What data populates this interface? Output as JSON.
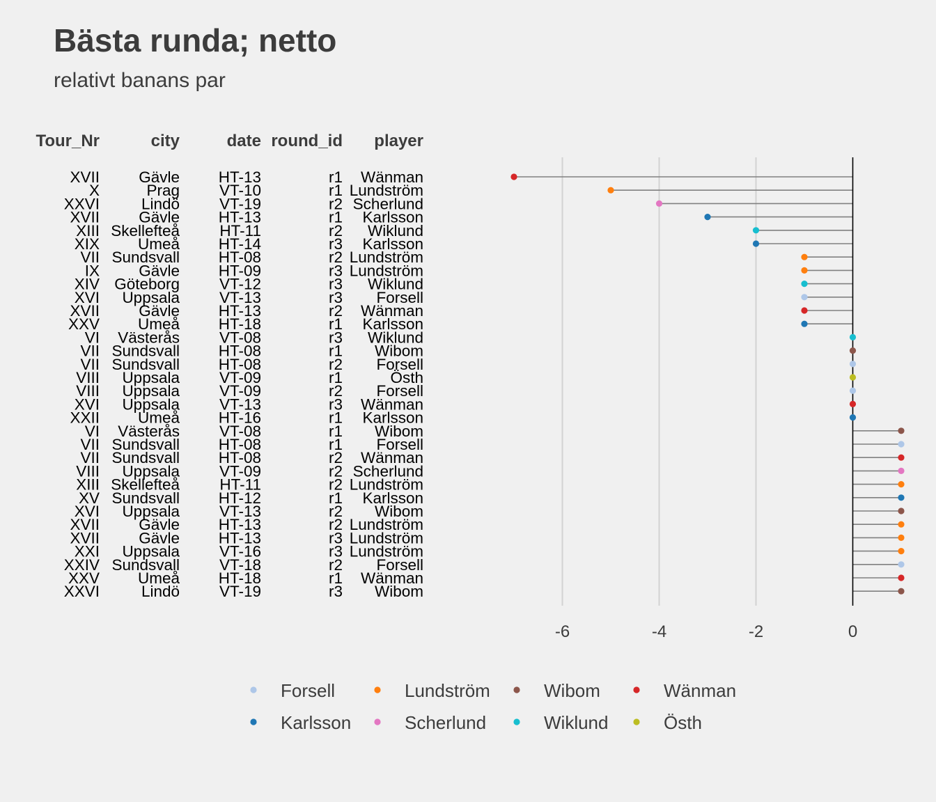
{
  "chart_data": {
    "type": "lollipop",
    "title": "Bästa runda; netto",
    "subtitle": "relativt banans par",
    "columns": [
      "Tour_Nr",
      "city",
      "date",
      "round_id",
      "player"
    ],
    "xlim": [
      -7.05,
      1.05
    ],
    "x_ticks": [
      -6,
      -4,
      -2,
      0
    ],
    "x_tick_labels": [
      "-6",
      "-4",
      "-2",
      "0"
    ],
    "grid": true,
    "legend_position": "bottom",
    "colors": {
      "Forsell": "#aec7e8",
      "Lundström": "#ff7f0e",
      "Wibom": "#8c564b",
      "Wänman": "#d62728",
      "Karlsson": "#1f77b4",
      "Scherlund": "#e377c2",
      "Wiklund": "#17becf",
      "Östh": "#bcbd22"
    },
    "legend": [
      "Forsell",
      "Lundström",
      "Wibom",
      "Wänman",
      "Karlsson",
      "Scherlund",
      "Wiklund",
      "Östh"
    ],
    "rows": [
      {
        "tour": "XVII",
        "city": "Gävle",
        "date": "HT-13",
        "round": "r1",
        "player": "Wänman",
        "value": -7
      },
      {
        "tour": "X",
        "city": "Prag",
        "date": "VT-10",
        "round": "r1",
        "player": "Lundström",
        "value": -5
      },
      {
        "tour": "XXVI",
        "city": "Lindö",
        "date": "VT-19",
        "round": "r2",
        "player": "Scherlund",
        "value": -4
      },
      {
        "tour": "XVII",
        "city": "Gävle",
        "date": "HT-13",
        "round": "r1",
        "player": "Karlsson",
        "value": -3
      },
      {
        "tour": "XIII",
        "city": "Skellefteå",
        "date": "HT-11",
        "round": "r2",
        "player": "Wiklund",
        "value": -2
      },
      {
        "tour": "XIX",
        "city": "Umeå",
        "date": "HT-14",
        "round": "r3",
        "player": "Karlsson",
        "value": -2
      },
      {
        "tour": "VII",
        "city": "Sundsvall",
        "date": "HT-08",
        "round": "r2",
        "player": "Lundström",
        "value": -1
      },
      {
        "tour": "IX",
        "city": "Gävle",
        "date": "HT-09",
        "round": "r3",
        "player": "Lundström",
        "value": -1
      },
      {
        "tour": "XIV",
        "city": "Göteborg",
        "date": "VT-12",
        "round": "r3",
        "player": "Wiklund",
        "value": -1
      },
      {
        "tour": "XVI",
        "city": "Uppsala",
        "date": "VT-13",
        "round": "r3",
        "player": "Forsell",
        "value": -1
      },
      {
        "tour": "XVII",
        "city": "Gävle",
        "date": "HT-13",
        "round": "r2",
        "player": "Wänman",
        "value": -1
      },
      {
        "tour": "XXV",
        "city": "Umeå",
        "date": "HT-18",
        "round": "r1",
        "player": "Karlsson",
        "value": -1
      },
      {
        "tour": "VI",
        "city": "Västerås",
        "date": "VT-08",
        "round": "r3",
        "player": "Wiklund",
        "value": 0
      },
      {
        "tour": "VII",
        "city": "Sundsvall",
        "date": "HT-08",
        "round": "r1",
        "player": "Wibom",
        "value": 0
      },
      {
        "tour": "VII",
        "city": "Sundsvall",
        "date": "HT-08",
        "round": "r2",
        "player": "Forsell",
        "value": 0
      },
      {
        "tour": "VIII",
        "city": "Uppsala",
        "date": "VT-09",
        "round": "r1",
        "player": "Östh",
        "value": 0
      },
      {
        "tour": "VIII",
        "city": "Uppsala",
        "date": "VT-09",
        "round": "r2",
        "player": "Forsell",
        "value": 0
      },
      {
        "tour": "XVI",
        "city": "Uppsala",
        "date": "VT-13",
        "round": "r3",
        "player": "Wänman",
        "value": 0
      },
      {
        "tour": "XXII",
        "city": "Umeå",
        "date": "HT-16",
        "round": "r1",
        "player": "Karlsson",
        "value": 0
      },
      {
        "tour": "VI",
        "city": "Västerås",
        "date": "VT-08",
        "round": "r1",
        "player": "Wibom",
        "value": 1
      },
      {
        "tour": "VII",
        "city": "Sundsvall",
        "date": "HT-08",
        "round": "r1",
        "player": "Forsell",
        "value": 1
      },
      {
        "tour": "VII",
        "city": "Sundsvall",
        "date": "HT-08",
        "round": "r2",
        "player": "Wänman",
        "value": 1
      },
      {
        "tour": "VIII",
        "city": "Uppsala",
        "date": "VT-09",
        "round": "r2",
        "player": "Scherlund",
        "value": 1
      },
      {
        "tour": "XIII",
        "city": "Skellefteå",
        "date": "HT-11",
        "round": "r2",
        "player": "Lundström",
        "value": 1
      },
      {
        "tour": "XV",
        "city": "Sundsvall",
        "date": "HT-12",
        "round": "r1",
        "player": "Karlsson",
        "value": 1
      },
      {
        "tour": "XVI",
        "city": "Uppsala",
        "date": "VT-13",
        "round": "r2",
        "player": "Wibom",
        "value": 1
      },
      {
        "tour": "XVII",
        "city": "Gävle",
        "date": "HT-13",
        "round": "r2",
        "player": "Lundström",
        "value": 1
      },
      {
        "tour": "XVII",
        "city": "Gävle",
        "date": "HT-13",
        "round": "r3",
        "player": "Lundström",
        "value": 1
      },
      {
        "tour": "XXI",
        "city": "Uppsala",
        "date": "VT-16",
        "round": "r3",
        "player": "Lundström",
        "value": 1
      },
      {
        "tour": "XXIV",
        "city": "Sundsvall",
        "date": "VT-18",
        "round": "r2",
        "player": "Forsell",
        "value": 1
      },
      {
        "tour": "XXV",
        "city": "Umeå",
        "date": "HT-18",
        "round": "r1",
        "player": "Wänman",
        "value": 1
      },
      {
        "tour": "XXVI",
        "city": "Lindö",
        "date": "VT-19",
        "round": "r3",
        "player": "Wibom",
        "value": 1
      }
    ]
  }
}
